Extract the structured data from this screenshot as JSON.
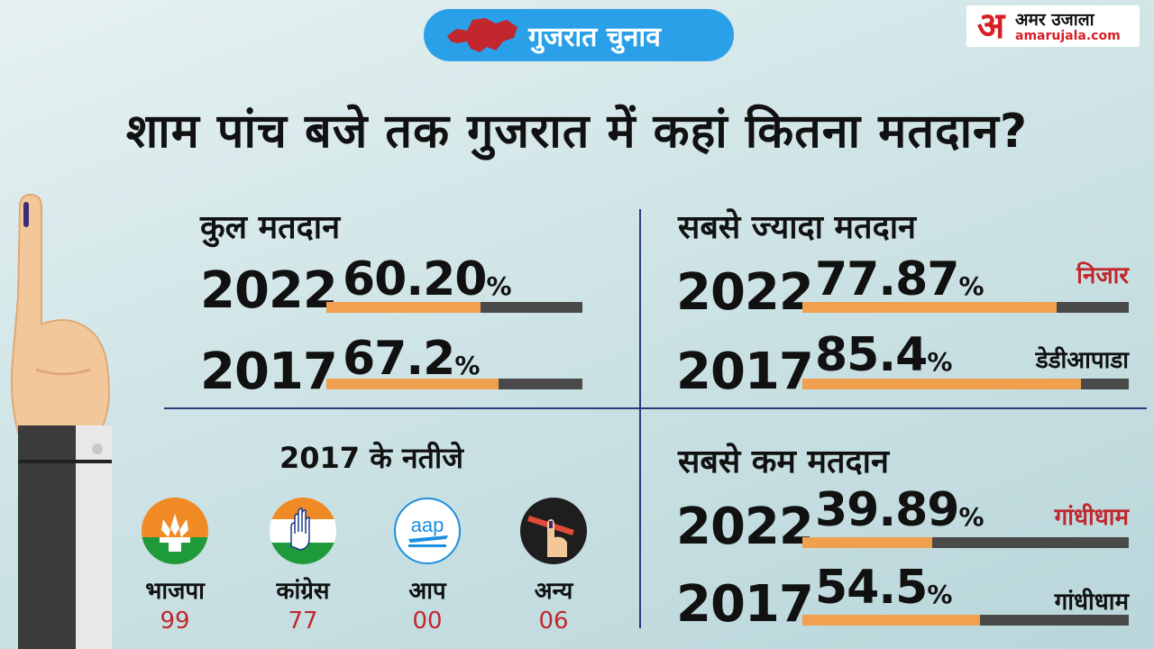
{
  "header": {
    "badge": "गुजरात चुनाव"
  },
  "logo": {
    "mark": "अ",
    "name": "अमर उजाला",
    "url": "amarujala.com"
  },
  "headline": "शाम पांच बजे तक गुजरात में कहां कितना मतदान?",
  "colors": {
    "accent_blue": "#2aa0e8",
    "bar_fill": "#f0a04e",
    "bar_track": "#4a4a4a",
    "red_text": "#c1272d"
  },
  "total": {
    "title": "कुल मतदान",
    "rows": [
      {
        "year": "2022",
        "value": "60.20",
        "sign": "%",
        "fraction": 0.602
      },
      {
        "year": "2017",
        "value": "67.2",
        "sign": "%",
        "fraction": 0.672
      }
    ]
  },
  "highest": {
    "title": "सबसे ज्यादा मतदान",
    "rows": [
      {
        "year": "2022",
        "value": "77.87",
        "sign": "%",
        "place": "निजार",
        "place_color": "#c1272d",
        "fraction": 0.7787
      },
      {
        "year": "2017",
        "value": "85.4",
        "sign": "%",
        "place": "डेडीआपाडा",
        "place_color": "#111111",
        "fraction": 0.854
      }
    ]
  },
  "results": {
    "title": "2017 के नतीजे",
    "parties": [
      {
        "icon": "bjp-lotus-icon",
        "name": "भाजपा",
        "seats": "99"
      },
      {
        "icon": "congress-hand-icon",
        "name": "कांग्रेस",
        "seats": "77"
      },
      {
        "icon": "aap-icon",
        "name": "आप",
        "seats": "00",
        "logo_text": "aap"
      },
      {
        "icon": "others-voting-finger-icon",
        "name": "अन्य",
        "seats": "06"
      }
    ]
  },
  "lowest": {
    "title": "सबसे कम मतदान",
    "rows": [
      {
        "year": "2022",
        "value": "39.89",
        "sign": "%",
        "place": "गांधीधाम",
        "place_color": "#c1272d",
        "fraction": 0.3989
      },
      {
        "year": "2017",
        "value": "54.5",
        "sign": "%",
        "place": "गांधीधाम",
        "place_color": "#111111",
        "fraction": 0.545
      }
    ]
  }
}
